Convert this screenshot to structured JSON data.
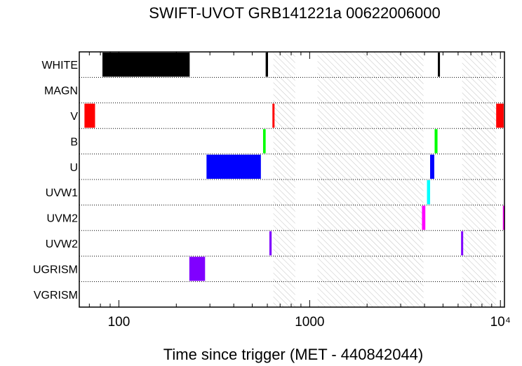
{
  "chart_data": {
    "type": "timeline",
    "title": "SWIFT-UVOT GRB141221a 00622006000",
    "xlabel": "Time since trigger (MET - 440842044)",
    "ylabel": "",
    "x_scale": "log",
    "xlim": [
      62,
      10500
    ],
    "x_ticks": [
      {
        "value": 100,
        "label": "100"
      },
      {
        "value": 1000,
        "label": "1000"
      },
      {
        "value": 10000,
        "label": "10⁴"
      }
    ],
    "categories": [
      "WHITE",
      "MAGN",
      "V",
      "B",
      "U",
      "UVW1",
      "UVM2",
      "UVW2",
      "UGRISM",
      "VGRISM"
    ],
    "gaps": [
      [
        645,
        840
      ],
      [
        1100,
        3950
      ],
      [
        6300,
        9500
      ]
    ],
    "exposures": [
      {
        "filter": "WHITE",
        "start": 82,
        "end": 235,
        "color": "#000000"
      },
      {
        "filter": "WHITE",
        "start": 588,
        "end": 605,
        "color": "#000000"
      },
      {
        "filter": "WHITE",
        "start": 4700,
        "end": 4800,
        "color": "#000000"
      },
      {
        "filter": "V",
        "start": 66,
        "end": 75,
        "color": "#ff0000"
      },
      {
        "filter": "V",
        "start": 638,
        "end": 652,
        "color": "#ff0000"
      },
      {
        "filter": "V",
        "start": 9500,
        "end": 10400,
        "color": "#ff0000"
      },
      {
        "filter": "B",
        "start": 570,
        "end": 588,
        "color": "#00ff00"
      },
      {
        "filter": "B",
        "start": 4520,
        "end": 4680,
        "color": "#00ff00"
      },
      {
        "filter": "U",
        "start": 288,
        "end": 555,
        "color": "#0000ff"
      },
      {
        "filter": "U",
        "start": 4280,
        "end": 4500,
        "color": "#0000ff"
      },
      {
        "filter": "UVW1",
        "start": 4120,
        "end": 4280,
        "color": "#00ffff"
      },
      {
        "filter": "UVM2",
        "start": 3880,
        "end": 4040,
        "color": "#ff00ff"
      },
      {
        "filter": "UVM2",
        "start": 10300,
        "end": 10500,
        "color": "#ff00ff"
      },
      {
        "filter": "UVW2",
        "start": 615,
        "end": 632,
        "color": "#8000ff"
      },
      {
        "filter": "UVW2",
        "start": 6220,
        "end": 6380,
        "color": "#8000ff"
      },
      {
        "filter": "UGRISM",
        "start": 234,
        "end": 283,
        "color": "#8000ff"
      }
    ],
    "hatch_color": "#b3b3b3",
    "row_divider": "dotted"
  }
}
